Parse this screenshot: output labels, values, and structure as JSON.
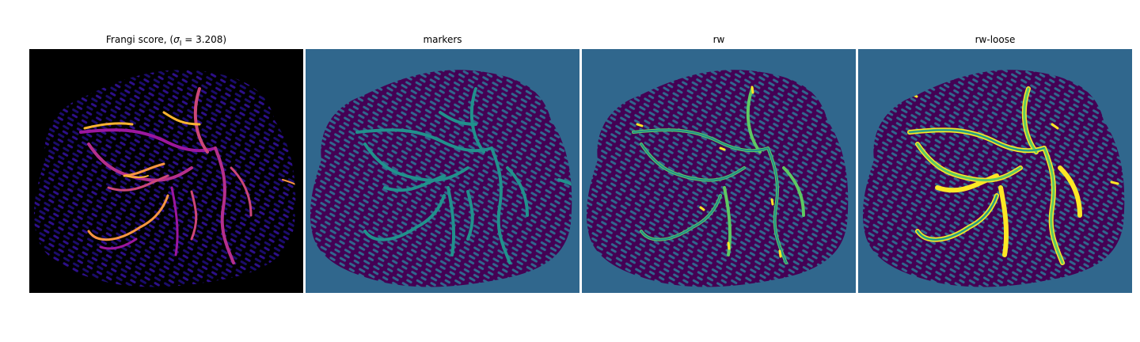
{
  "figure": {
    "panels": [
      {
        "id": "frangi",
        "title_prefix": "Frangi score, (",
        "title_sigma": "σ",
        "title_sub": "I",
        "title_suffix": " = 3.208)",
        "colormap": "plasma",
        "background_color": "#000000"
      },
      {
        "id": "markers",
        "title": "markers",
        "colormap": "viridis",
        "background_color": "#30678d"
      },
      {
        "id": "rw",
        "title": "rw",
        "colormap": "viridis",
        "background_color": "#30678d"
      },
      {
        "id": "rw-loose",
        "title": "rw-loose",
        "colormap": "viridis",
        "background_color": "#30678d"
      }
    ],
    "colors": {
      "plasma_tissue": "#1b0c6b",
      "plasma_vessel_mid": "#9c179e",
      "plasma_vessel_high": "#fdb42f",
      "viridis_tissue": "#440154",
      "viridis_marker": "#21918c",
      "viridis_vessel": "#5ec962",
      "viridis_peak": "#fde725"
    }
  }
}
